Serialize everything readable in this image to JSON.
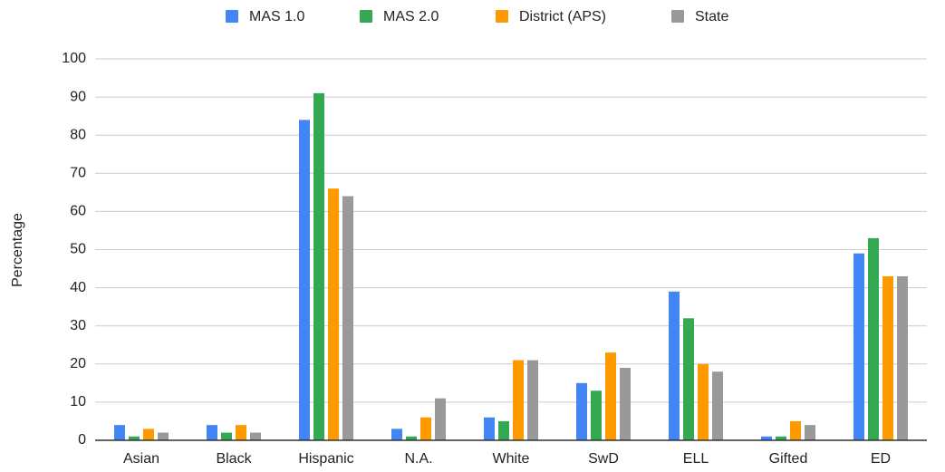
{
  "chart_data": {
    "type": "bar",
    "y_label": "Percentage",
    "categories": [
      "Asian",
      "Black",
      "Hispanic",
      "N.A.",
      "White",
      "SwD",
      "ELL",
      "Gifted",
      "ED"
    ],
    "series": [
      {
        "name": "MAS 1.0",
        "color": "#4285f4",
        "values": [
          4,
          4,
          84,
          3,
          6,
          15,
          39,
          1,
          49
        ]
      },
      {
        "name": "MAS 2.0",
        "color": "#34a853",
        "values": [
          1,
          2,
          91,
          1,
          5,
          13,
          32,
          1,
          53
        ]
      },
      {
        "name": "District (APS)",
        "color": "#ff9900",
        "values": [
          3,
          4,
          66,
          6,
          21,
          23,
          20,
          5,
          43
        ]
      },
      {
        "name": "State",
        "color": "#999999",
        "values": [
          2,
          2,
          64,
          11,
          21,
          19,
          18,
          4,
          43
        ]
      }
    ],
    "ylim": [
      0,
      100
    ],
    "yticks": [
      0,
      10,
      20,
      30,
      40,
      50,
      60,
      70,
      80,
      90,
      100
    ],
    "grid": true,
    "legend": "top"
  }
}
